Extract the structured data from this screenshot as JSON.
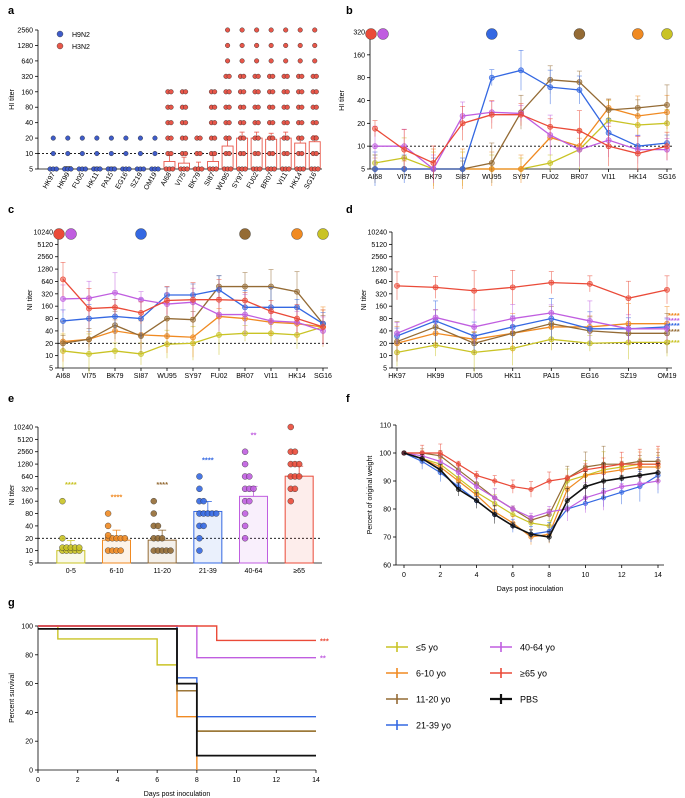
{
  "colors": {
    "le5": "#c9c325",
    "a6_10": "#f08a22",
    "a11_20": "#946b35",
    "a21_39": "#3468e2",
    "a40_64": "#c05ee0",
    "ge65": "#ea4a38",
    "pbs": "#111111",
    "h9n2": "#3f5cc9",
    "h3n2": "#e8574a"
  },
  "chart_data": [
    {
      "panel": "a",
      "type": "scatter",
      "ylabel": "HI titer",
      "yscale": "log2",
      "ylim": [
        5,
        2560
      ],
      "yticks": [
        "2560",
        "1280",
        "640",
        "320",
        "160",
        "80",
        "40",
        "20",
        "10",
        "5"
      ],
      "categories": [
        "HK97",
        "HK99",
        "FU05",
        "HK11",
        "PA15",
        "EG16",
        "SZ19",
        "OM19",
        "AI68",
        "VI75",
        "BK79",
        "SI87",
        "WU95",
        "SY97",
        "FU02",
        "BR07",
        "VI11",
        "HK14",
        "SG16"
      ],
      "legend": [
        "H9N2",
        "H3N2"
      ],
      "means": [
        5.2,
        5.5,
        5.2,
        5.4,
        5.4,
        5.2,
        5.2,
        5.2,
        7,
        6.5,
        5.2,
        7,
        14,
        20,
        20,
        19,
        20,
        16,
        17
      ],
      "cutoff": 10
    },
    {
      "panel": "b",
      "type": "line",
      "ylabel": "HI  titer",
      "yscale": "log2",
      "ylim": [
        5,
        320
      ],
      "yticks": [
        "320",
        "160",
        "80",
        "40",
        "20",
        "10",
        "5"
      ],
      "categories": [
        "AI68",
        "VI75",
        "BK79",
        "SI87",
        "WU95",
        "SY97",
        "FU02",
        "BR07",
        "VI11",
        "HK14",
        "SG16"
      ],
      "series": [
        {
          "name": "≤5 yo",
          "key": "le5",
          "values": [
            6,
            7,
            5,
            5,
            5,
            5,
            6,
            9,
            22,
            19,
            20
          ]
        },
        {
          "name": "6-10 yo",
          "key": "a6_10",
          "values": [
            5,
            5,
            5,
            5,
            5,
            5,
            13,
            10,
            32,
            25,
            28
          ]
        },
        {
          "name": "11-20 yo",
          "key": "a11_20",
          "values": [
            5,
            5,
            5,
            5,
            6,
            28,
            75,
            70,
            30,
            32,
            35
          ]
        },
        {
          "name": "21-39 yo",
          "key": "a21_39",
          "values": [
            5,
            5,
            5,
            5,
            80,
            100,
            60,
            55,
            15,
            10,
            11
          ]
        },
        {
          "name": "40-64 yo",
          "key": "a40_64",
          "values": [
            10,
            10,
            5,
            25,
            28,
            27,
            14,
            9,
            12,
            9,
            9
          ]
        },
        {
          "name": "≥65 yo",
          "key": "ge65",
          "values": [
            17,
            9,
            6,
            20,
            26,
            26,
            18,
            16,
            10,
            8,
            10
          ]
        }
      ]
    },
    {
      "panel": "c",
      "type": "line",
      "ylabel": "NI  titer",
      "yscale": "log2",
      "ylim": [
        5,
        10240
      ],
      "yticks": [
        "10240",
        "5120",
        "2560",
        "1280",
        "640",
        "320",
        "160",
        "80",
        "40",
        "20",
        "10",
        "5"
      ],
      "categories": [
        "AI68",
        "VI75",
        "BK79",
        "SI87",
        "WU95",
        "SY97",
        "FU02",
        "BR07",
        "VI11",
        "HK14",
        "SG16"
      ],
      "series": [
        {
          "name": "≤5 yo",
          "key": "le5",
          "values": [
            13,
            11,
            13,
            11,
            19,
            20,
            32,
            35,
            35,
            32,
            50
          ]
        },
        {
          "name": "6-10 yo",
          "key": "a6_10",
          "values": [
            22,
            25,
            40,
            32,
            30,
            28,
            90,
            80,
            65,
            60,
            50
          ]
        },
        {
          "name": "11-20 yo",
          "key": "a11_20",
          "values": [
            20,
            25,
            55,
            30,
            80,
            75,
            480,
            480,
            480,
            360,
            60
          ]
        },
        {
          "name": "21-39 yo",
          "key": "a21_39",
          "values": [
            70,
            80,
            90,
            80,
            300,
            300,
            400,
            150,
            150,
            150,
            60
          ]
        },
        {
          "name": "40-64 yo",
          "key": "a40_64",
          "values": [
            240,
            250,
            340,
            230,
            180,
            200,
            100,
            100,
            70,
            65,
            40
          ]
        },
        {
          "name": "≥65 yo",
          "key": "ge65",
          "values": [
            720,
            140,
            150,
            110,
            220,
            230,
            230,
            220,
            120,
            80,
            50
          ]
        }
      ]
    },
    {
      "panel": "d",
      "type": "line",
      "ylabel": "NI  titer",
      "yscale": "log2",
      "ylim": [
        5,
        10240
      ],
      "yticks": [
        "10240",
        "5120",
        "2560",
        "1280",
        "640",
        "320",
        "160",
        "80",
        "40",
        "20",
        "10",
        "5"
      ],
      "categories": [
        "HK97",
        "HK99",
        "FU05",
        "HK11",
        "PA15",
        "EG16",
        "SZ19",
        "OM19"
      ],
      "series": [
        {
          "name": "≤5 yo",
          "key": "le5",
          "values": [
            12,
            18,
            12,
            15,
            25,
            20,
            21,
            21
          ]
        },
        {
          "name": "6-10 yo",
          "key": "a6_10",
          "values": [
            20,
            35,
            25,
            35,
            50,
            50,
            60,
            60
          ]
        },
        {
          "name": "11-20 yo",
          "key": "a11_20",
          "values": [
            22,
            50,
            20,
            35,
            60,
            40,
            35,
            35
          ]
        },
        {
          "name": "21-39 yo",
          "key": "a21_39",
          "values": [
            30,
            70,
            30,
            50,
            80,
            45,
            45,
            50
          ]
        },
        {
          "name": "40-64 yo",
          "key": "a40_64",
          "values": [
            35,
            85,
            50,
            80,
            110,
            70,
            45,
            45
          ]
        },
        {
          "name": "≥65 yo",
          "key": "ge65",
          "values": [
            500,
            460,
            380,
            460,
            600,
            560,
            250,
            400
          ]
        }
      ],
      "significance": [
        "****",
        "****",
        "****",
        "****",
        "****"
      ]
    },
    {
      "panel": "e",
      "type": "bar",
      "ylabel": "NI titer",
      "yscale": "log2",
      "ylim": [
        5,
        10240
      ],
      "yticks": [
        "10240",
        "5120",
        "2560",
        "1280",
        "640",
        "320",
        "160",
        "80",
        "40",
        "20",
        "10",
        "5"
      ],
      "categories": [
        "0-5",
        "6-10",
        "11-20",
        "21-39",
        "40-64",
        "≥65"
      ],
      "values": [
        10,
        18,
        18,
        90,
        210,
        650
      ],
      "significance": [
        "****",
        "****",
        "****",
        "****",
        "**",
        ""
      ],
      "cutoff": 20
    },
    {
      "panel": "f",
      "type": "line",
      "xlabel": "Days post inoculation",
      "ylabel": "Percent of original weight",
      "xlim": [
        0,
        14
      ],
      "ylim": [
        60,
        110
      ],
      "xticks": [
        "0",
        "2",
        "4",
        "6",
        "8",
        "10",
        "12",
        "14"
      ],
      "yticks": [
        "110",
        "100",
        "90",
        "80",
        "70",
        "60"
      ],
      "days": [
        0,
        1,
        2,
        3,
        4,
        5,
        6,
        7,
        8,
        9,
        10,
        11,
        12,
        13,
        14
      ],
      "series": [
        {
          "name": "≤5 yo",
          "key": "le5",
          "values": [
            100,
            98,
            96,
            91,
            86,
            82,
            78,
            75,
            74,
            90,
            92,
            94,
            95,
            96,
            96
          ]
        },
        {
          "name": "6-10 yo",
          "key": "a6_10",
          "values": [
            100,
            98,
            95,
            90,
            85,
            79,
            75,
            70,
            71,
            87,
            92,
            93,
            94,
            95,
            95
          ]
        },
        {
          "name": "11-20 yo",
          "key": "a11_20",
          "values": [
            100,
            100,
            99,
            94,
            89,
            84,
            80,
            76,
            78,
            91,
            95,
            96,
            96,
            97,
            97
          ]
        },
        {
          "name": "21-39 yo",
          "key": "a21_39",
          "values": [
            100,
            97,
            93,
            88,
            83,
            78,
            74,
            71,
            72,
            80,
            82,
            84,
            86,
            88,
            92
          ]
        },
        {
          "name": "40-64 yo",
          "key": "a40_64",
          "values": [
            100,
            99,
            97,
            93,
            88,
            84,
            80,
            77,
            79,
            80,
            84,
            86,
            88,
            89,
            90
          ]
        },
        {
          "name": "≥65 yo",
          "key": "ge65",
          "values": [
            100,
            100,
            100,
            96,
            92,
            90,
            88,
            87,
            90,
            91,
            94,
            95,
            96,
            96,
            96
          ]
        },
        {
          "name": "PBS",
          "key": "pbs",
          "values": [
            100,
            98,
            94,
            87,
            83,
            78,
            74,
            71,
            70,
            83,
            88,
            90,
            91,
            92,
            93
          ]
        }
      ]
    },
    {
      "panel": "g",
      "type": "line",
      "xlabel": "Days post inoculation",
      "ylabel": "Percent survival",
      "xlim": [
        0,
        14
      ],
      "ylim": [
        0,
        100
      ],
      "xticks": [
        "0",
        "2",
        "4",
        "6",
        "8",
        "10",
        "12",
        "14"
      ],
      "yticks": [
        "100",
        "80",
        "60",
        "40",
        "20",
        "0"
      ],
      "series": [
        {
          "name": "≤5 yo",
          "key": "le5",
          "points": [
            [
              0,
              100
            ],
            [
              1,
              100
            ],
            [
              1,
              91
            ],
            [
              6,
              91
            ],
            [
              6,
              73
            ],
            [
              7,
              73
            ],
            [
              7,
              55
            ],
            [
              8,
              55
            ],
            [
              8,
              27
            ],
            [
              14,
              27
            ]
          ]
        },
        {
          "name": "6-10 yo",
          "key": "a6_10",
          "points": [
            [
              0,
              100
            ],
            [
              7,
              100
            ],
            [
              7,
              37
            ],
            [
              8,
              37
            ],
            [
              8,
              0
            ]
          ]
        },
        {
          "name": "11-20 yo",
          "key": "a11_20",
          "points": [
            [
              0,
              100
            ],
            [
              7,
              100
            ],
            [
              7,
              55
            ],
            [
              8,
              55
            ],
            [
              8,
              27
            ],
            [
              14,
              27
            ]
          ]
        },
        {
          "name": "21-39 yo",
          "key": "a21_39",
          "points": [
            [
              0,
              100
            ],
            [
              7,
              100
            ],
            [
              7,
              64
            ],
            [
              8,
              64
            ],
            [
              8,
              37
            ],
            [
              14,
              37
            ]
          ]
        },
        {
          "name": "40-64 yo",
          "key": "a40_64",
          "points": [
            [
              0,
              100
            ],
            [
              8,
              100
            ],
            [
              8,
              78
            ],
            [
              14,
              78
            ]
          ]
        },
        {
          "name": "≥65 yo",
          "key": "ge65",
          "points": [
            [
              0,
              100
            ],
            [
              9,
              100
            ],
            [
              9,
              90
            ],
            [
              14,
              90
            ]
          ]
        },
        {
          "name": "PBS",
          "key": "pbs",
          "points": [
            [
              0,
              98
            ],
            [
              7,
              98
            ],
            [
              7,
              60
            ],
            [
              8,
              60
            ],
            [
              8,
              10
            ],
            [
              14,
              10
            ]
          ]
        }
      ],
      "significance": [
        {
          "key": "ge65",
          "text": "***"
        },
        {
          "key": "a40_64",
          "text": "**"
        }
      ]
    }
  ],
  "legend_g": {
    "items": [
      {
        "label": "≤5 yo",
        "key": "le5"
      },
      {
        "label": "40-64 yo",
        "key": "a40_64"
      },
      {
        "label": "6-10 yo",
        "key": "a6_10"
      },
      {
        "label": "≥65 yo",
        "key": "ge65"
      },
      {
        "label": "11-20 yo",
        "key": "a11_20"
      },
      {
        "label": "PBS",
        "key": "pbs"
      },
      {
        "label": "21-39 yo",
        "key": "a21_39"
      }
    ]
  },
  "panel_letters": [
    "a",
    "b",
    "c",
    "d",
    "e",
    "f",
    "g"
  ]
}
